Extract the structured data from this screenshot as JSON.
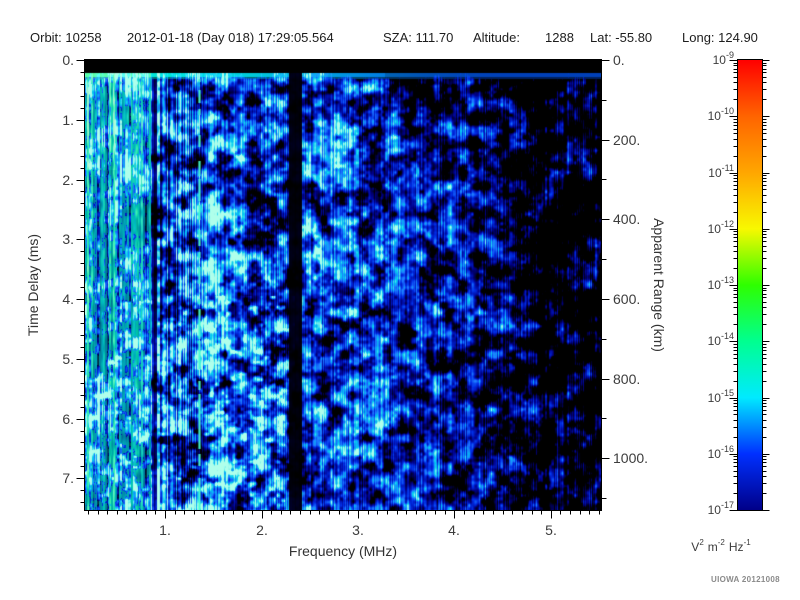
{
  "header": {
    "orbit": "Orbit: 10258",
    "datetime": "2012-01-18 (Day 018) 17:29:05.564",
    "sza": "SZA: 111.70",
    "altitude_label": "Altitude:",
    "altitude_value": "1288",
    "lat": "Lat: -55.80",
    "long": "Long: 124.90"
  },
  "axes": {
    "x_title": "Frequency (MHz)",
    "left_title": "Time Delay (ms)",
    "right_title": "Apparent Range (km)"
  },
  "colorbar": {
    "labels": [
      {
        "base": "10",
        "exp": "-9"
      },
      {
        "base": "10",
        "exp": "-10"
      },
      {
        "base": "10",
        "exp": "-11"
      },
      {
        "base": "10",
        "exp": "-12"
      },
      {
        "base": "10",
        "exp": "-13"
      },
      {
        "base": "10",
        "exp": "-14"
      },
      {
        "base": "10",
        "exp": "-15"
      },
      {
        "base": "10",
        "exp": "-16"
      },
      {
        "base": "10",
        "exp": "-17"
      }
    ],
    "units_parts": [
      {
        "b": "V",
        "e": "2"
      },
      {
        "b": "m",
        "e": "-2"
      },
      {
        "b": "Hz",
        "e": "-1"
      }
    ]
  },
  "watermark": "UIOWA 20121008",
  "chart_data": {
    "type": "heatmap",
    "title": "",
    "x_axis": {
      "label": "Frequency (MHz)",
      "min": 0.17,
      "max": 5.52,
      "major_ticks": [
        1,
        2,
        3,
        4,
        5
      ],
      "tick_labels": [
        "1.",
        "2.",
        "3.",
        "4.",
        "5."
      ],
      "minor_step": 0.1
    },
    "y_axis_left": {
      "label": "Time Delay (ms)",
      "min": 0,
      "max": 7.53,
      "major_ticks": [
        0,
        1,
        2,
        3,
        4,
        5,
        6,
        7
      ],
      "tick_labels": [
        "0.",
        "1.",
        "2.",
        "3.",
        "4.",
        "5.",
        "6.",
        "7."
      ],
      "minor_step": 0.2,
      "direction": "down"
    },
    "y_axis_right": {
      "label": "Apparent Range (km)",
      "min": 0,
      "max": 1130,
      "major_ticks": [
        0,
        200,
        400,
        600,
        800,
        1000
      ],
      "tick_labels": [
        "0.",
        "200.",
        "400.",
        "600.",
        "800.",
        "1000."
      ],
      "minor_step": 100
    },
    "colorbar": {
      "units": "V2 m-2 Hz-1",
      "scale": "log",
      "exponent_ticks": [
        -9,
        -10,
        -11,
        -12,
        -13,
        -14,
        -15,
        -16,
        -17
      ],
      "gradient_stops": [
        {
          "color": "#ff0000",
          "pos": 0
        },
        {
          "color": "#ff6400",
          "pos": 12.5
        },
        {
          "color": "#ffa600",
          "pos": 25
        },
        {
          "color": "#f8f800",
          "pos": 37.5
        },
        {
          "color": "#2eff00",
          "pos": 50
        },
        {
          "color": "#00ff90",
          "pos": 62.5
        },
        {
          "color": "#00eaff",
          "pos": 75
        },
        {
          "color": "#0030ff",
          "pos": 87.5
        },
        {
          "color": "#000088",
          "pos": 100
        }
      ],
      "background_color": "#000000",
      "noise_color_low": "#000088",
      "noise_color_high": "#00d2f0"
    },
    "features": {
      "top_black_band_ms": [
        0,
        0.22
      ],
      "surface_echo_line_ms": 0.3,
      "plasma_harmonic_stripes_mhz": [
        0.17,
        0.85
      ],
      "dashed_emission_line_mhz": 1.35,
      "dark_band_mhz": [
        2.29,
        2.41
      ],
      "noise_character": "diffuse blue speckle, density decreasing toward higher frequencies, brighter cyan specks at low frequency and long delay"
    }
  }
}
